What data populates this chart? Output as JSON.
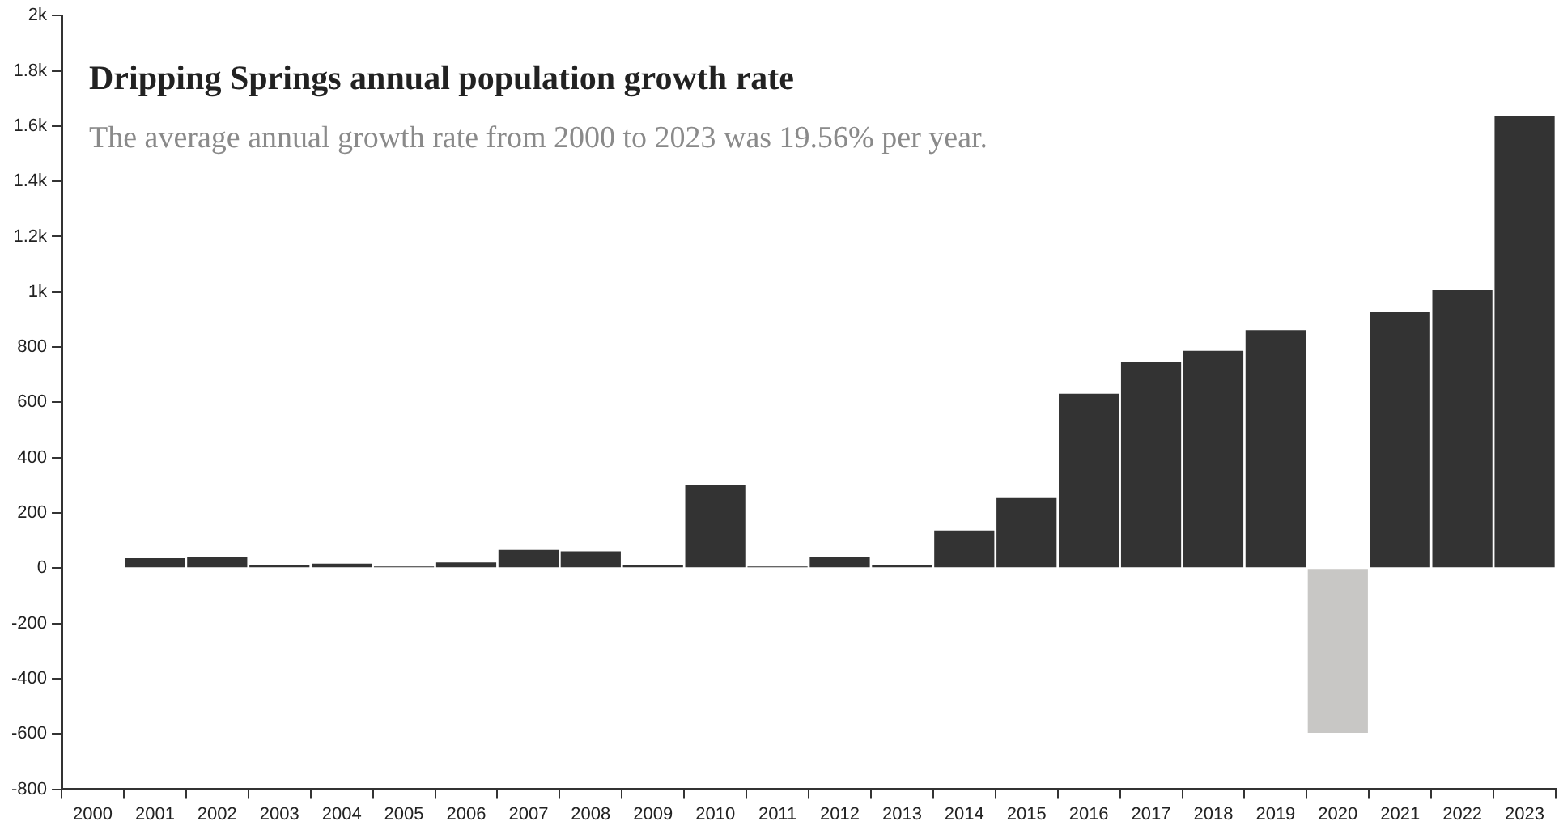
{
  "chart_data": {
    "type": "bar",
    "title": "Dripping Springs annual population growth rate",
    "subtitle": "The average annual growth rate from 2000 to 2023 was 19.56% per year.",
    "categories": [
      "2000",
      "2001",
      "2002",
      "2003",
      "2004",
      "2005",
      "2006",
      "2007",
      "2008",
      "2009",
      "2010",
      "2011",
      "2012",
      "2013",
      "2014",
      "2015",
      "2016",
      "2017",
      "2018",
      "2019",
      "2020",
      "2021",
      "2022",
      "2023"
    ],
    "values": [
      null,
      40,
      45,
      15,
      20,
      5,
      25,
      70,
      65,
      15,
      305,
      5,
      45,
      15,
      140,
      260,
      635,
      750,
      790,
      865,
      -600,
      930,
      1010,
      1640
    ],
    "colors": [
      "#333333",
      "#333333",
      "#333333",
      "#333333",
      "#333333",
      "#333333",
      "#333333",
      "#333333",
      "#333333",
      "#333333",
      "#333333",
      "#333333",
      "#333333",
      "#333333",
      "#333333",
      "#333333",
      "#333333",
      "#333333",
      "#333333",
      "#333333",
      "#c8c7c5",
      "#333333",
      "#333333",
      "#333333"
    ],
    "ylim": [
      -800,
      2000
    ],
    "yticks": [
      -800,
      -600,
      -400,
      -200,
      0,
      200,
      400,
      600,
      800,
      {
        "value": 1000,
        "label": "1k"
      },
      {
        "value": 1200,
        "label": "1.2k"
      },
      {
        "value": 1400,
        "label": "1.4k"
      },
      {
        "value": 1600,
        "label": "1.6k"
      },
      {
        "value": 1800,
        "label": "1.8k"
      },
      {
        "value": 2000,
        "label": "2k"
      }
    ],
    "grid": false,
    "legend": false
  }
}
